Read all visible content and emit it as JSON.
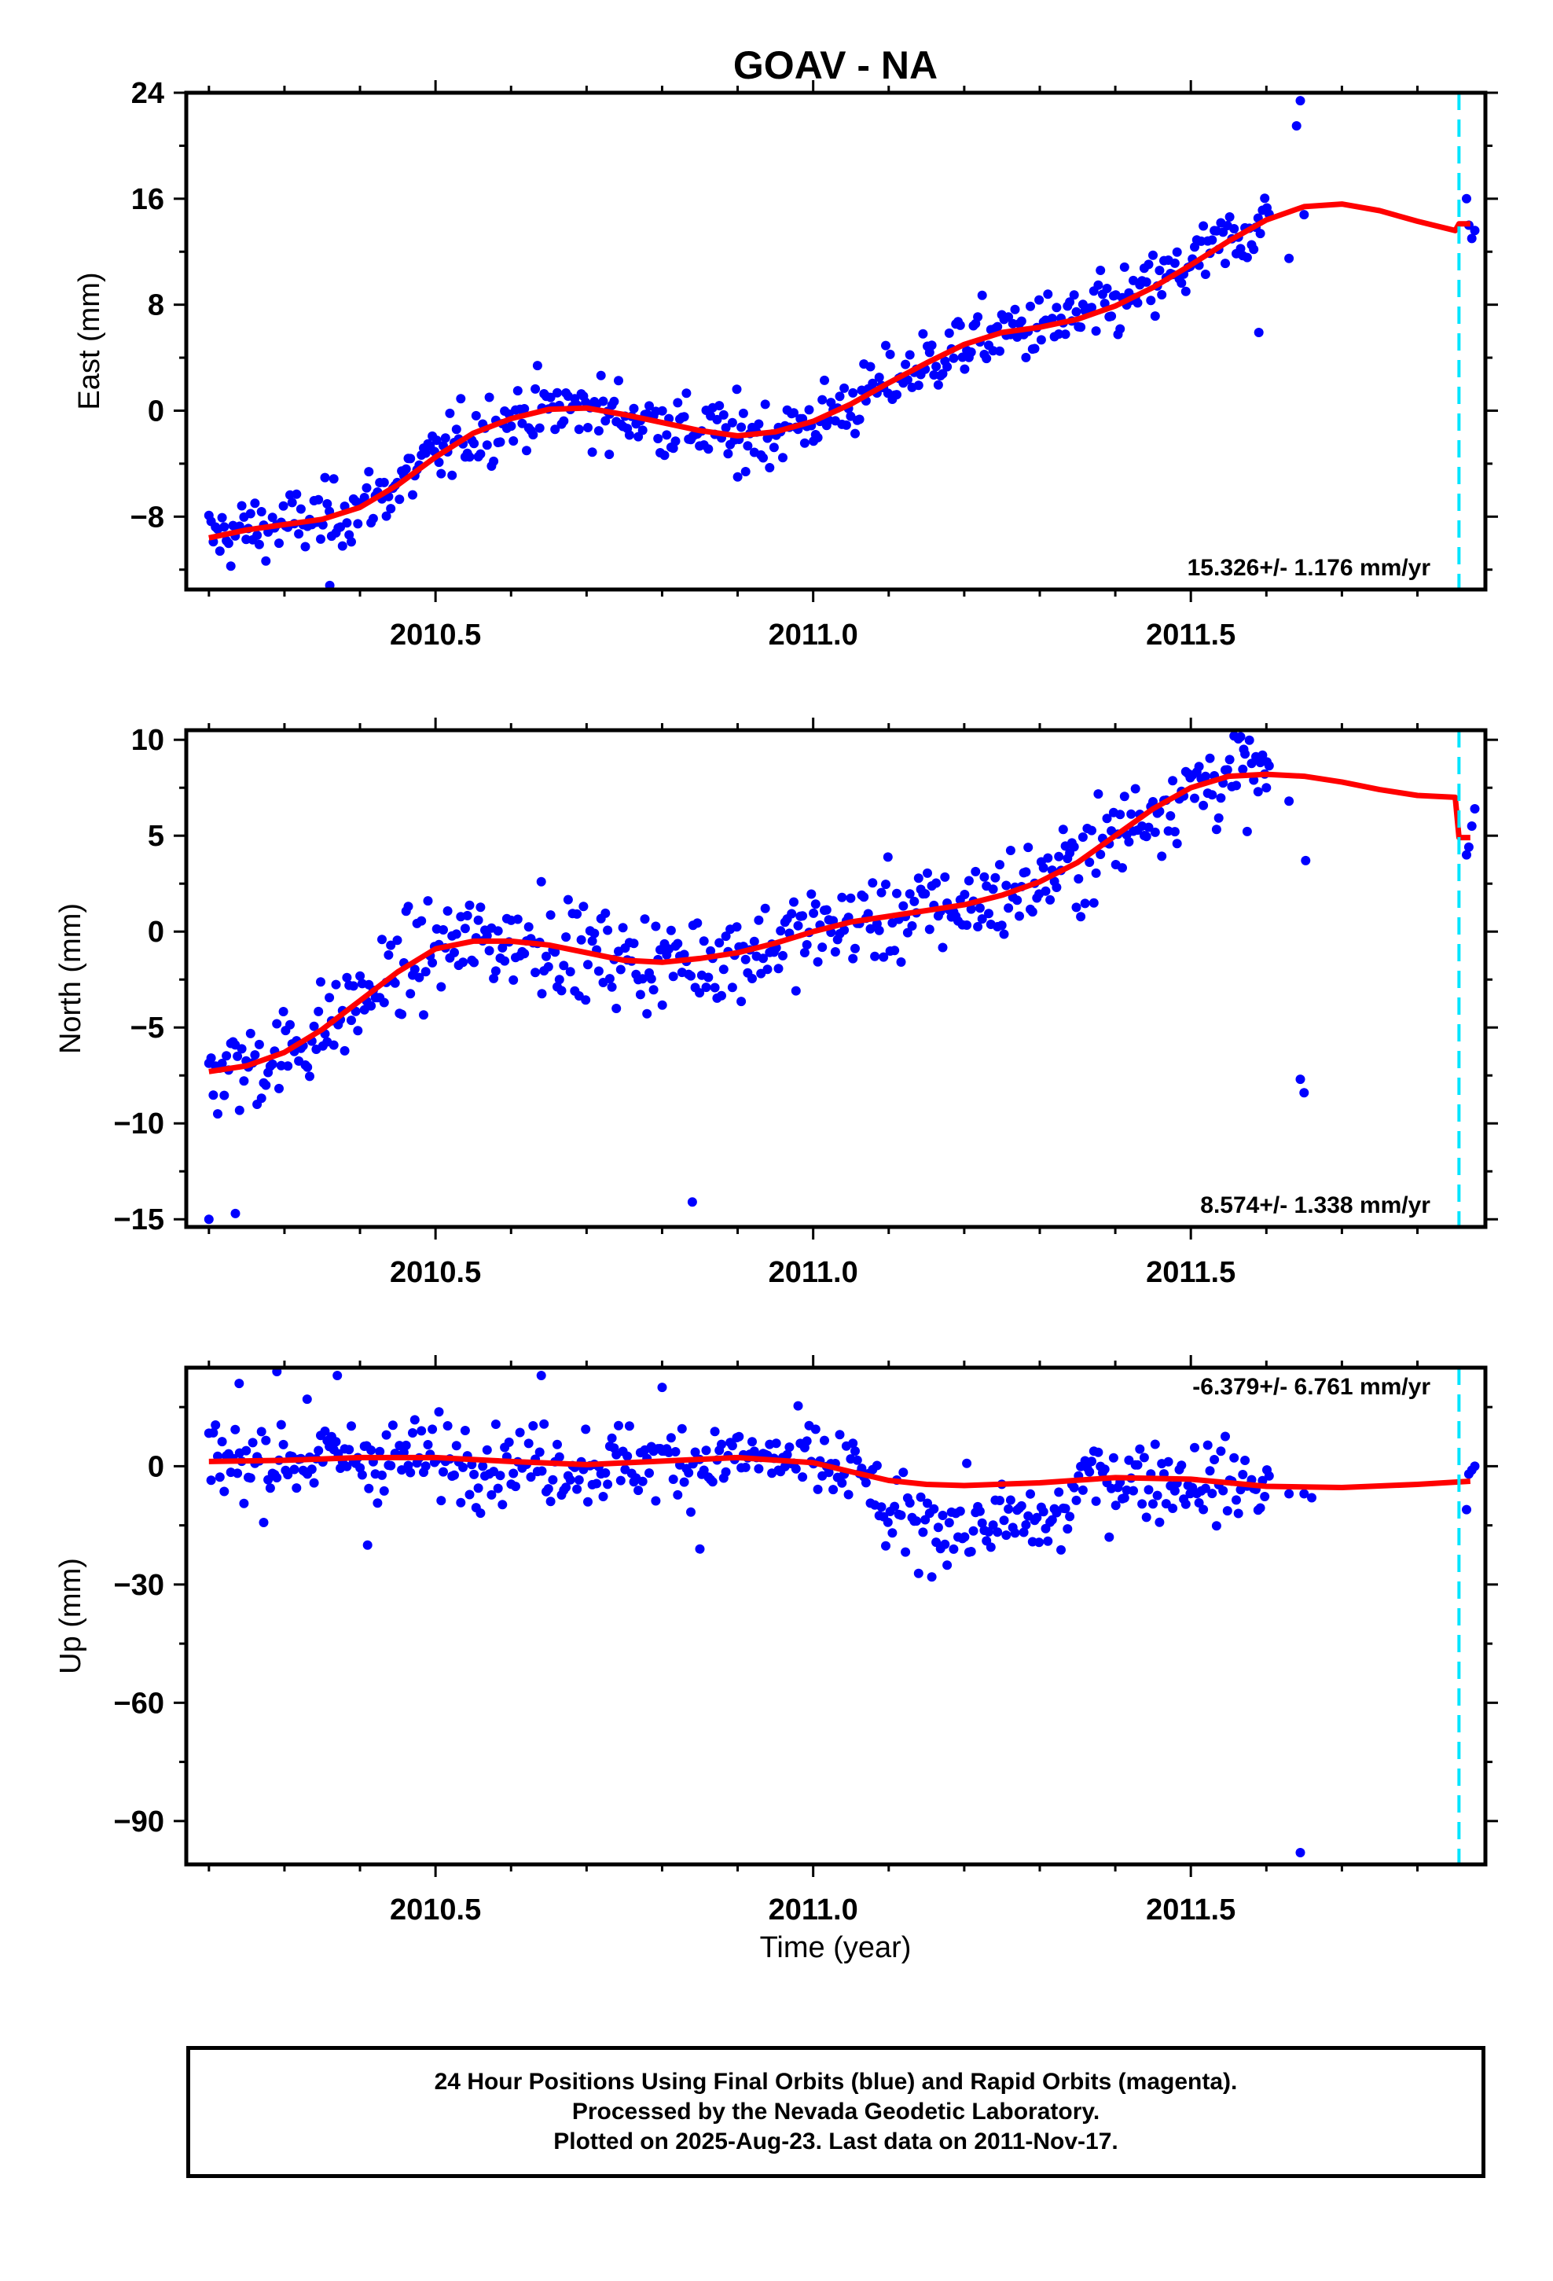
{
  "title": "GOAV - NA",
  "colors": {
    "data": "#0000ff",
    "model": "#ff0000",
    "marker": "#00e5ff",
    "frame": "#000000"
  },
  "footer": {
    "line1": "24 Hour Positions Using Final Orbits (blue) and Rapid Orbits (magenta).",
    "line2": "Processed by the Nevada Geodetic Laboratory.",
    "line3": "Plotted on 2025-Aug-23. Last data on 2011-Nov-17."
  },
  "chart_data": [
    {
      "type": "scatter",
      "ylabel": "East (mm)",
      "xlim": [
        2010.17,
        2011.89
      ],
      "ylim": [
        -13.5,
        24
      ],
      "yticks": [
        -8,
        0,
        8,
        16,
        24
      ],
      "xticks": [
        2010.5,
        2011.0,
        2011.5
      ],
      "xtick_labels": [
        "2010.5",
        "2011.0",
        "2011.5"
      ],
      "rate_label": "15.326+/- 1.176 mm/yr",
      "rate_position": "bottom-right",
      "marker_line_x": 2011.855,
      "model": {
        "x": [
          2010.2,
          2010.25,
          2010.3,
          2010.35,
          2010.4,
          2010.45,
          2010.5,
          2010.55,
          2010.6,
          2010.65,
          2010.7,
          2010.75,
          2010.8,
          2010.85,
          2010.9,
          2010.95,
          2011.0,
          2011.05,
          2011.1,
          2011.15,
          2011.2,
          2011.25,
          2011.3,
          2011.35,
          2011.4,
          2011.45,
          2011.5,
          2011.55,
          2011.6,
          2011.65,
          2011.7,
          2011.75,
          2011.8,
          2011.85,
          2011.855,
          2011.87
        ],
        "y": [
          -9.6,
          -9.0,
          -8.6,
          -8.2,
          -7.3,
          -5.6,
          -3.5,
          -1.7,
          -0.6,
          0.1,
          0.2,
          -0.3,
          -0.9,
          -1.5,
          -1.9,
          -1.6,
          -0.8,
          0.5,
          2.1,
          3.6,
          5.0,
          5.9,
          6.3,
          6.9,
          7.9,
          9.3,
          11.0,
          12.8,
          14.4,
          15.4,
          15.6,
          15.1,
          14.3,
          13.6,
          14.1,
          14.1
        ]
      },
      "outliers": {
        "x": [
          2010.36,
          2010.9,
          2010.73,
          2011.59,
          2011.63,
          2011.64,
          2011.645,
          2011.65,
          2011.865,
          2011.868,
          2011.872,
          2011.876
        ],
        "y": [
          -13.2,
          -5.0,
          -3.3,
          5.9,
          11.5,
          21.5,
          23.4,
          14.8,
          16.0,
          14.0,
          13.0,
          13.6
        ]
      }
    },
    {
      "type": "scatter",
      "ylabel": "North (mm)",
      "xlim": [
        2010.17,
        2011.89
      ],
      "ylim": [
        -15.4,
        10.5
      ],
      "yticks": [
        -15,
        -10,
        -5,
        0,
        5,
        10
      ],
      "xticks": [
        2010.5,
        2011.0,
        2011.5
      ],
      "xtick_labels": [
        "2010.5",
        "2011.0",
        "2011.5"
      ],
      "rate_label": "8.574+/- 1.338 mm/yr",
      "rate_position": "bottom-right",
      "marker_line_x": 2011.855,
      "model": {
        "x": [
          2010.2,
          2010.25,
          2010.3,
          2010.35,
          2010.4,
          2010.45,
          2010.5,
          2010.55,
          2010.6,
          2010.65,
          2010.7,
          2010.75,
          2010.8,
          2010.85,
          2010.9,
          2010.95,
          2011.0,
          2011.05,
          2011.1,
          2011.15,
          2011.2,
          2011.25,
          2011.3,
          2011.35,
          2011.4,
          2011.45,
          2011.5,
          2011.55,
          2011.6,
          2011.65,
          2011.7,
          2011.75,
          2011.8,
          2011.85,
          2011.855,
          2011.87
        ],
        "y": [
          -7.3,
          -7.0,
          -6.3,
          -5.1,
          -3.6,
          -2.1,
          -0.9,
          -0.5,
          -0.5,
          -0.7,
          -1.1,
          -1.5,
          -1.6,
          -1.4,
          -1.1,
          -0.6,
          0.0,
          0.5,
          0.8,
          1.1,
          1.4,
          1.9,
          2.6,
          3.6,
          5.0,
          6.4,
          7.5,
          8.1,
          8.2,
          8.1,
          7.8,
          7.4,
          7.1,
          7.0,
          4.9,
          4.9
        ]
      },
      "outliers": {
        "x": [
          2010.2,
          2010.235,
          2010.84,
          2010.64,
          2011.57,
          2011.6,
          2011.63,
          2011.645,
          2011.65,
          2011.652,
          2011.865,
          2011.868,
          2011.872,
          2011.876
        ],
        "y": [
          -15.0,
          -14.7,
          -14.1,
          2.6,
          9.5,
          7.5,
          6.8,
          -7.7,
          -8.4,
          3.7,
          4.0,
          4.4,
          5.5,
          6.4
        ]
      }
    },
    {
      "type": "scatter",
      "ylabel": "Up (mm)",
      "xlabel": "Time (year)",
      "xlim": [
        2010.17,
        2011.89
      ],
      "ylim": [
        -101,
        25
      ],
      "yticks": [
        -90,
        -60,
        -30,
        0
      ],
      "xticks": [
        2010.5,
        2011.0,
        2011.5
      ],
      "xtick_labels": [
        "2010.5",
        "2011.0",
        "2011.5"
      ],
      "rate_label": "-6.379+/- 6.761 mm/yr",
      "rate_position": "top-right",
      "marker_line_x": 2011.855,
      "model": {
        "x": [
          2010.2,
          2010.3,
          2010.4,
          2010.5,
          2010.6,
          2010.7,
          2010.8,
          2010.9,
          2011.0,
          2011.05,
          2011.1,
          2011.15,
          2011.2,
          2011.3,
          2011.4,
          2011.5,
          2011.6,
          2011.7,
          2011.8,
          2011.87
        ],
        "y": [
          1.2,
          1.5,
          2.2,
          2.2,
          1.2,
          0.4,
          1.3,
          2.2,
          0.9,
          -1.4,
          -3.6,
          -4.6,
          -4.9,
          -4.2,
          -2.9,
          -3.3,
          -5.1,
          -5.4,
          -4.6,
          -3.8
        ]
      },
      "outliers": {
        "x": [
          2010.24,
          2010.29,
          2010.33,
          2010.37,
          2010.41,
          2010.64,
          2010.8,
          2010.85,
          2011.63,
          2011.65,
          2011.645,
          2011.66,
          2011.865,
          2011.868,
          2011.872,
          2011.876
        ],
        "y": [
          21,
          24,
          17,
          23,
          -20,
          23,
          20,
          -21,
          -7,
          -7,
          -98,
          -8,
          -11,
          -2,
          -1,
          0
        ]
      }
    }
  ]
}
